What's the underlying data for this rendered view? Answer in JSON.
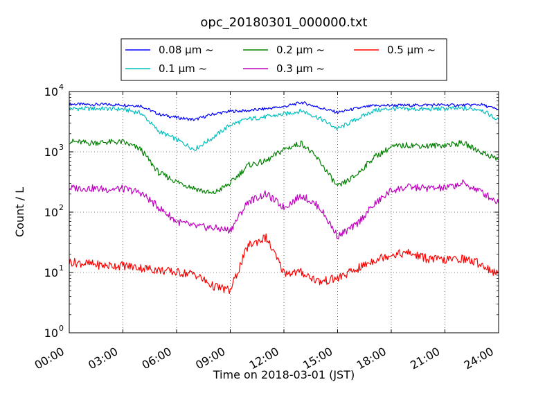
{
  "chart_data": {
    "type": "line",
    "title": "opc_20180301_000000.txt",
    "xlabel": "Time on 2018-03-01 (JST)",
    "ylabel": "Count / L",
    "yscale": "log",
    "ylim": [
      1,
      10000
    ],
    "xlim": [
      "00:00",
      "24:00"
    ],
    "grid": true,
    "legend_placement": "top-center",
    "x_ticks": [
      "00:00",
      "03:00",
      "06:00",
      "09:00",
      "12:00",
      "15:00",
      "18:00",
      "21:00",
      "24:00"
    ],
    "y_ticks": [
      {
        "base": "10",
        "exp": "0"
      },
      {
        "base": "10",
        "exp": "1"
      },
      {
        "base": "10",
        "exp": "2"
      },
      {
        "base": "10",
        "exp": "3"
      },
      {
        "base": "10",
        "exp": "4"
      }
    ],
    "x_hours": [
      0,
      1,
      2,
      3,
      4,
      5,
      6,
      7,
      8,
      9,
      10,
      11,
      12,
      13,
      14,
      15,
      16,
      17,
      18,
      19,
      20,
      21,
      22,
      23,
      24
    ],
    "series": [
      {
        "name": "0.08 μm ~",
        "color": "#0000ff",
        "values": [
          6200,
          6100,
          6100,
          6000,
          5800,
          4200,
          3700,
          3400,
          4200,
          4700,
          4800,
          5200,
          5600,
          6600,
          5400,
          4500,
          5200,
          5800,
          5900,
          5900,
          6000,
          6000,
          5900,
          6100,
          5000
        ]
      },
      {
        "name": "0.1 μm ~",
        "color": "#00bfbf",
        "values": [
          5200,
          5200,
          5200,
          5100,
          4400,
          2200,
          1600,
          1100,
          1700,
          2800,
          3500,
          3800,
          4200,
          4800,
          3600,
          2400,
          3400,
          4800,
          5200,
          5100,
          5100,
          5200,
          5200,
          5100,
          3300
        ]
      },
      {
        "name": "0.2 μm ~",
        "color": "#008000",
        "values": [
          1500,
          1400,
          1450,
          1450,
          1100,
          450,
          320,
          250,
          200,
          300,
          600,
          700,
          1100,
          1400,
          700,
          260,
          400,
          800,
          1200,
          1300,
          1250,
          1300,
          1400,
          1000,
          750
        ]
      },
      {
        "name": "0.3 μm ~",
        "color": "#bf00bf",
        "values": [
          250,
          250,
          240,
          245,
          210,
          120,
          70,
          58,
          55,
          50,
          150,
          200,
          120,
          190,
          120,
          40,
          60,
          130,
          230,
          260,
          250,
          250,
          300,
          220,
          145
        ]
      },
      {
        "name": "0.5 μm ~",
        "color": "#ff0000",
        "values": [
          15,
          14,
          13,
          13,
          12,
          11,
          10,
          9.5,
          6,
          5,
          28,
          38,
          10,
          10,
          7,
          8,
          11,
          16,
          20,
          21,
          17,
          16,
          17,
          14,
          9
        ]
      }
    ]
  }
}
